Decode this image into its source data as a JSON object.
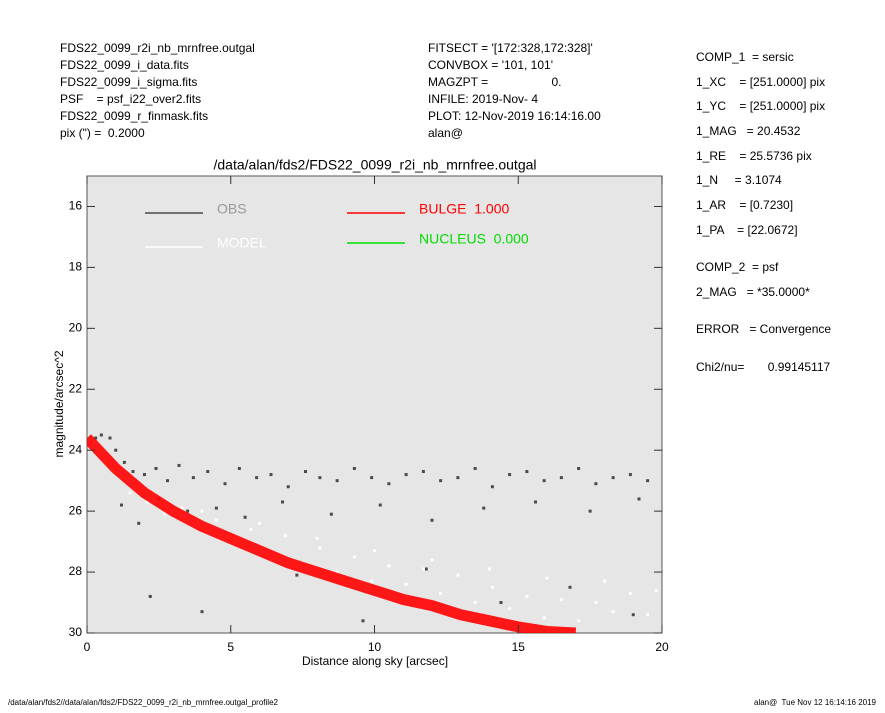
{
  "header": {
    "left": [
      "FDS22_0099_r2i_nb_mrnfree.outgal",
      "FDS22_0099_i_data.fits",
      "FDS22_0099_i_sigma.fits",
      "PSF    = psf_i22_over2.fits",
      "FDS22_0099_r_finmask.fits",
      "pix (\") =  0.2000"
    ],
    "middle": [
      "FITSECT = '[172:328,172:328]'",
      "CONVBOX = '101, 101'",
      "MAGZPT =                   0.",
      "INFILE: 2019-Nov- 4",
      "PLOT: 12-Nov-2019 16:14:16.00",
      "alan@"
    ],
    "right": [
      "COMP_1  = sersic",
      "1_XC    = [251.0000] pix",
      "1_YC    = [251.0000] pix",
      "1_MAG   = 20.4532",
      "1_RE    = 25.5736 pix",
      "1_N     = 3.1074",
      "1_AR    = [0.7230]",
      "1_PA    = [22.0672]",
      "COMP_2  = psf",
      "2_MAG   = *35.0000*",
      "ERROR   = Convergence",
      "Chi2/nu=       0.99145117"
    ]
  },
  "footer": {
    "left": "/data/alan/fds2//data/alan/fds2/FDS22_0099_r2i_nb_mrnfree.outgal_profile2",
    "right": "alan@  Tue Nov 12 16:14:16 2019"
  },
  "chart_data": {
    "type": "scatter",
    "title": "/data/alan/fds2/FDS22_0099_r2i_nb_mrnfree.outgal",
    "x_label": "Distance along sky [arcsec]",
    "y_label": "magnitude/arcsec^2",
    "xlim": [
      0,
      20
    ],
    "xticks": [
      0,
      5,
      10,
      15,
      20
    ],
    "ylim": [
      15,
      30
    ],
    "yticks": [
      16,
      18,
      20,
      22,
      24,
      26,
      28,
      30
    ],
    "y_inverted": true,
    "background": "#e6e6e6",
    "series": [
      {
        "name": "OBS",
        "color": "#4a4a4a",
        "mode": "points",
        "x": [
          0.3,
          0.5,
          0.8,
          1.0,
          1.3,
          1.6,
          2.0,
          2.4,
          2.8,
          3.2,
          3.7,
          4.2,
          4.8,
          5.3,
          5.9,
          6.4,
          7.0,
          7.6,
          8.1,
          8.7,
          9.3,
          9.9,
          10.5,
          11.1,
          11.7,
          12.3,
          12.9,
          13.5,
          14.1,
          14.7,
          15.3,
          15.9,
          16.5,
          17.1,
          17.7,
          18.3,
          18.9,
          19.5,
          1.2,
          1.8,
          2.5,
          3.5,
          4.5,
          5.5,
          6.8,
          8.5,
          10.2,
          12.0,
          13.8,
          15.6,
          17.5,
          19.2,
          2.2,
          4.0,
          7.3,
          9.6,
          11.8,
          14.4,
          16.8,
          19.0
        ],
        "values": [
          23.6,
          23.5,
          23.6,
          24.0,
          24.4,
          24.7,
          24.8,
          24.6,
          25.0,
          24.5,
          24.9,
          24.7,
          25.1,
          24.6,
          24.9,
          24.8,
          25.2,
          24.7,
          24.9,
          25.0,
          24.6,
          24.9,
          25.1,
          24.8,
          24.7,
          25.0,
          24.9,
          24.6,
          25.2,
          24.8,
          24.7,
          25.0,
          24.9,
          24.6,
          25.1,
          24.9,
          24.8,
          25.0,
          25.8,
          26.4,
          25.6,
          26.0,
          25.9,
          26.2,
          25.7,
          26.1,
          25.8,
          26.3,
          25.9,
          25.7,
          26.0,
          25.6,
          28.8,
          29.3,
          28.1,
          29.6,
          27.9,
          29.0,
          28.5,
          29.4
        ]
      },
      {
        "name": "MODEL",
        "color": "#ffffff",
        "mode": "points",
        "x": [
          1.5,
          2.1,
          2.7,
          3.3,
          3.9,
          4.5,
          5.1,
          5.7,
          6.3,
          6.9,
          7.5,
          8.1,
          8.7,
          9.3,
          9.9,
          10.5,
          11.1,
          11.7,
          12.3,
          12.9,
          13.5,
          14.1,
          14.7,
          15.3,
          15.9,
          16.5,
          17.1,
          17.7,
          18.3,
          18.9,
          19.5,
          4.0,
          6.0,
          8.0,
          10.0,
          12.0,
          14.0,
          16.0,
          18.0,
          19.8
        ],
        "values": [
          25.4,
          25.7,
          26.1,
          25.9,
          26.5,
          26.3,
          27.0,
          26.6,
          27.4,
          26.8,
          27.7,
          27.2,
          28.0,
          27.5,
          28.3,
          27.8,
          28.4,
          27.9,
          28.7,
          28.1,
          29.0,
          28.5,
          29.2,
          28.8,
          29.5,
          28.9,
          29.6,
          29.0,
          29.3,
          28.7,
          29.4,
          26.0,
          26.4,
          26.9,
          27.3,
          27.6,
          27.9,
          28.2,
          28.3,
          28.6
        ]
      },
      {
        "name": "BULGE  1.000",
        "color": "#ff0000",
        "mode": "band",
        "x": [
          0,
          1,
          2,
          3,
          4,
          5,
          6,
          7,
          8,
          9,
          10,
          11,
          12,
          13,
          14,
          15,
          16,
          17
        ],
        "values": [
          23.6,
          24.6,
          25.4,
          26.0,
          26.5,
          26.9,
          27.3,
          27.7,
          28.0,
          28.3,
          28.6,
          28.9,
          29.1,
          29.4,
          29.6,
          29.8,
          29.95,
          30.0
        ]
      },
      {
        "name": "NUCLEUS  0.000",
        "color": "#00dd00",
        "mode": "band",
        "x": [],
        "values": []
      }
    ]
  }
}
